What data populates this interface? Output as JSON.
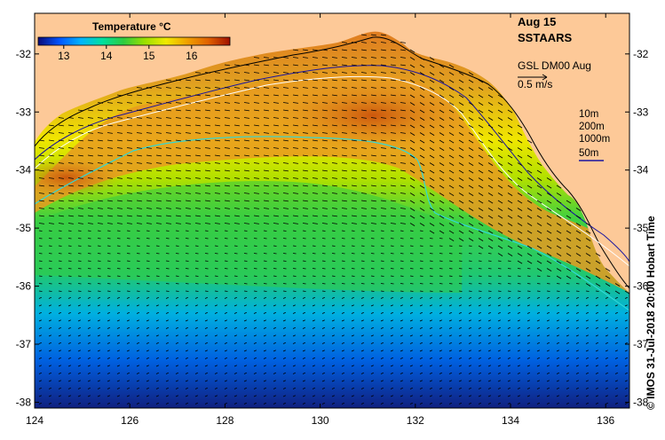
{
  "map": {
    "title": "Aug 15",
    "subtitle": "SSTAARS",
    "vector_source": "GSL DM00 Aug",
    "vector_scale_label": "0.5 m/s",
    "credit": "© IMOS 31-Jul-2018 20:00 Hobart Time",
    "lon_range": [
      124,
      136.5
    ],
    "lat_range": [
      -38.1,
      -31.3
    ],
    "lon_ticks": [
      "124",
      "126",
      "128",
      "130",
      "132",
      "134",
      "136"
    ],
    "lat_ticks": [
      "-32",
      "-33",
      "-34",
      "-35",
      "-36",
      "-37",
      "-38"
    ],
    "colors": {
      "land": "#fdc998",
      "frame": "#000000",
      "isobath_10m": "#000000",
      "isobath_200m": "#ffffff",
      "isobath_1000m": "#30d8d8",
      "isobath_50m": "#1a14a0"
    }
  },
  "colorbar": {
    "title": "Temperature °C",
    "ticks": [
      "13",
      "14",
      "15",
      "16"
    ],
    "range": [
      12.4,
      16.9
    ],
    "stops": [
      "#0a0a78",
      "#0055ff",
      "#00b4ff",
      "#00e0a0",
      "#2ecc40",
      "#9be000",
      "#f0ea00",
      "#f0a000",
      "#e06000",
      "#a01000"
    ]
  },
  "legend": {
    "items": [
      "10m",
      "200m",
      "1000m",
      "50m"
    ]
  }
}
